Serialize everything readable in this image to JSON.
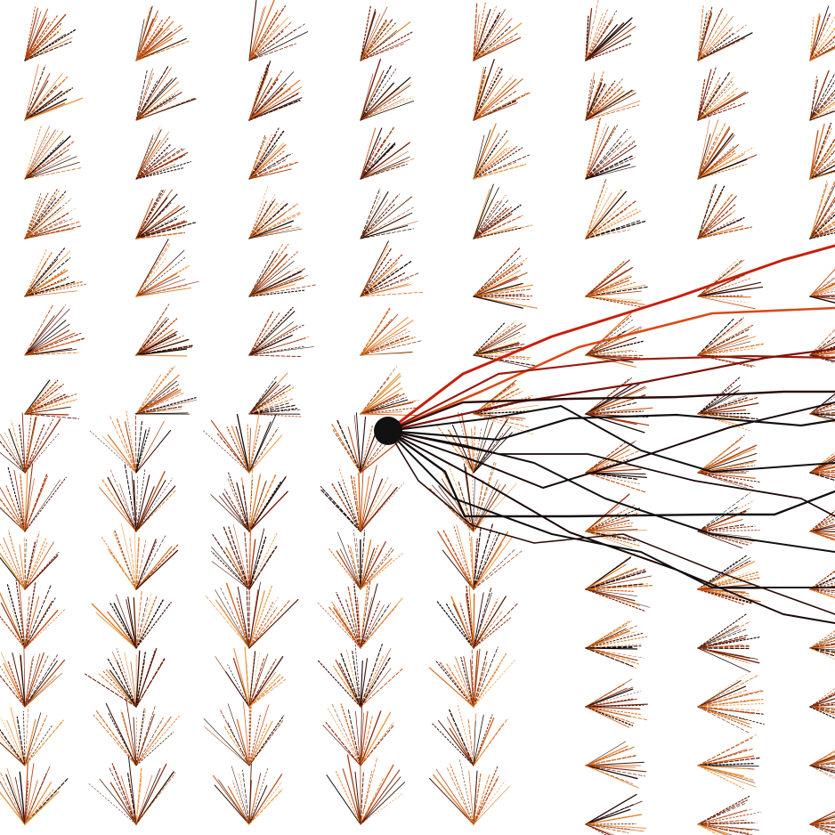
{
  "scene": {
    "background_color": "#ffffff",
    "palette": [
      "#120806",
      "#2a0d08",
      "#4a1509",
      "#6e1f0a",
      "#8f2c0c",
      "#a33a0d",
      "#c24e14",
      "#d4661c",
      "#e07a22",
      "#e89a44"
    ],
    "trajectory_colors": [
      "#c81e0a",
      "#d84a16",
      "#9a1c0c",
      "#7a120a",
      "#2a0c08",
      "#101010",
      "#1a0808"
    ],
    "source_point_color": "#111111"
  }
}
